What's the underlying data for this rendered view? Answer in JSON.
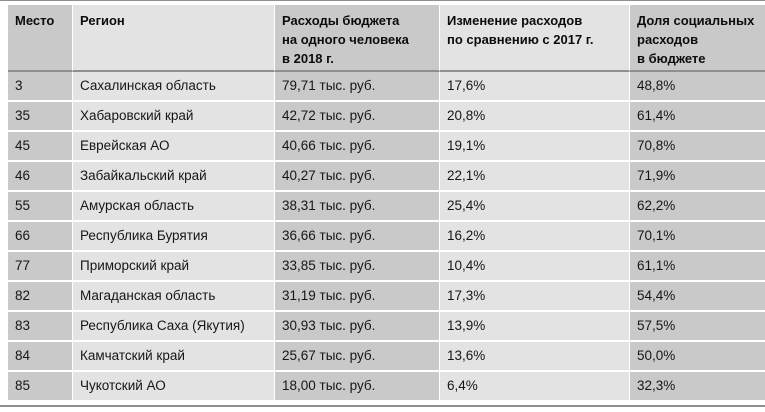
{
  "chart_data": {
    "type": "table",
    "title": "",
    "columns": [
      "Место",
      "Регион",
      "Расходы бюджета\nна одного человека\nв 2018 г.",
      "Изменение расходов\nпо сравнению с 2017 г.",
      "Доля социальных\nрасходов\nв бюджете"
    ],
    "rows": [
      [
        "3",
        "Сахалинская область",
        "79,71 тыс. руб.",
        "17,6%",
        "48,8%"
      ],
      [
        "35",
        "Хабаровский край",
        "42,72 тыс. руб.",
        "20,8%",
        "61,4%"
      ],
      [
        "45",
        "Еврейская АО",
        "40,66 тыс. руб.",
        "19,1%",
        "70,8%"
      ],
      [
        "46",
        "Забайкальский край",
        "40,27 тыс. руб.",
        "22,1%",
        "71,9%"
      ],
      [
        "55",
        "Амурская область",
        "38,31 тыс. руб.",
        "25,4%",
        "62,2%"
      ],
      [
        "66",
        "Республика Бурятия",
        "36,66 тыс. руб.",
        "16,2%",
        "70,1%"
      ],
      [
        "77",
        "Приморский край",
        "33,85 тыс. руб.",
        "10,4%",
        "61,1%"
      ],
      [
        "82",
        "Магаданская область",
        "31,19 тыс. руб.",
        "17,3%",
        "54,4%"
      ],
      [
        "83",
        "Республика Саха (Якутия)",
        "30,93 тыс. руб.",
        "13,9%",
        "57,5%"
      ],
      [
        "84",
        "Камчатский край",
        "25,67 тыс. руб.",
        "13,6%",
        "50,0%"
      ],
      [
        "85",
        "Чукотский АО",
        "18,00 тыс. руб.",
        "6,4%",
        "32,3%"
      ]
    ]
  },
  "colors": {
    "col-dark": "#c9c9c9",
    "col-light": "#e3e3e3",
    "row-separator": "#ffffff",
    "header-rule": "#8f8f8f",
    "page-rule": "#8f8f8f",
    "text": "#161616"
  }
}
